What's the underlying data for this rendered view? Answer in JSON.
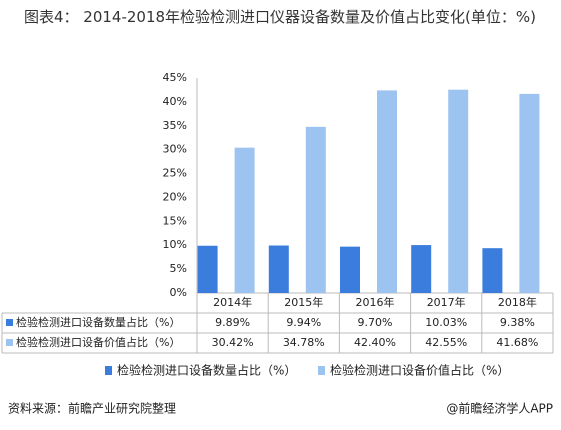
{
  "chart_data": {
    "type": "bar",
    "title": "图表4：  2014-2018年检验检测进口仪器设备数量及价值占比变化(单位：%)",
    "categories": [
      "2014年",
      "2015年",
      "2016年",
      "2017年",
      "2018年"
    ],
    "series": [
      {
        "name": "检验检测进口设备数量占比（%）",
        "color": "#3b7ddd",
        "values": [
          9.89,
          9.94,
          9.7,
          10.03,
          9.38
        ],
        "value_labels": [
          "9.89%",
          "9.94%",
          "9.70%",
          "10.03%",
          "9.38%"
        ]
      },
      {
        "name": "检验检测进口设备价值占比（%）",
        "color": "#9dc3f0",
        "values": [
          30.42,
          34.78,
          42.4,
          42.55,
          41.68
        ],
        "value_labels": [
          "30.42%",
          "34.78%",
          "42.40%",
          "42.55%",
          "41.68%"
        ]
      }
    ],
    "ylim": [
      0,
      45
    ],
    "yticks": [
      {
        "value": 0,
        "label": "0%"
      },
      {
        "value": 5,
        "label": "5%"
      },
      {
        "value": 10,
        "label": "10%"
      },
      {
        "value": 15,
        "label": "15%"
      },
      {
        "value": 20,
        "label": "20%"
      },
      {
        "value": 25,
        "label": "25%"
      },
      {
        "value": 30,
        "label": "30%"
      },
      {
        "value": 35,
        "label": "35%"
      },
      {
        "value": 40,
        "label": "40%"
      },
      {
        "value": 45,
        "label": "45%"
      }
    ],
    "source": "资料来源：前瞻产业研究院整理",
    "brand": "@前瞻经济学人APP"
  }
}
